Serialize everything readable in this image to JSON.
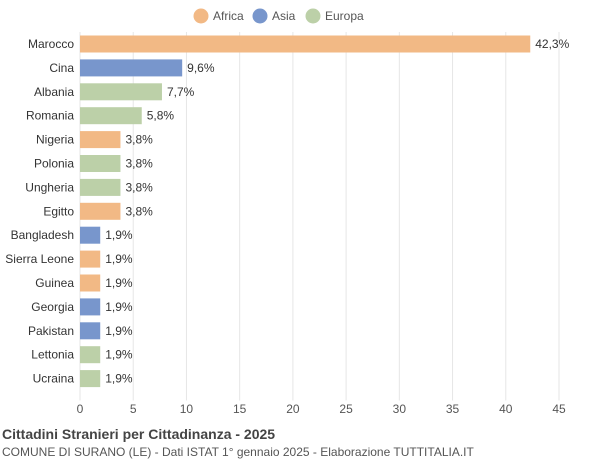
{
  "footer": {
    "title": "Cittadini Stranieri per Cittadinanza - 2025",
    "subtitle": "COMUNE DI SURANO (LE) - Dati ISTAT 1° gennaio 2025 - Elaborazione TUTTITALIA.IT"
  },
  "colors": {
    "Africa": "#f2b985",
    "Asia": "#7896cc",
    "Europa": "#bcd0a8"
  },
  "chart_data": {
    "type": "bar",
    "orientation": "horizontal",
    "legend": [
      "Africa",
      "Asia",
      "Europa"
    ],
    "legend_position": "top-center",
    "categories": [
      "Marocco",
      "Cina",
      "Albania",
      "Romania",
      "Nigeria",
      "Polonia",
      "Ungheria",
      "Egitto",
      "Bangladesh",
      "Sierra Leone",
      "Guinea",
      "Georgia",
      "Pakistan",
      "Lettonia",
      "Ucraina"
    ],
    "values": [
      42.3,
      9.6,
      7.7,
      5.8,
      3.8,
      3.8,
      3.8,
      3.8,
      1.9,
      1.9,
      1.9,
      1.9,
      1.9,
      1.9,
      1.9
    ],
    "value_labels": [
      "42,3%",
      "9,6%",
      "7,7%",
      "5,8%",
      "3,8%",
      "3,8%",
      "3,8%",
      "3,8%",
      "1,9%",
      "1,9%",
      "1,9%",
      "1,9%",
      "1,9%",
      "1,9%",
      "1,9%"
    ],
    "groups": [
      "Africa",
      "Asia",
      "Europa",
      "Europa",
      "Africa",
      "Europa",
      "Europa",
      "Africa",
      "Asia",
      "Africa",
      "Africa",
      "Asia",
      "Asia",
      "Europa",
      "Europa"
    ],
    "xlim": [
      0,
      45
    ],
    "xticks": [
      0,
      5,
      10,
      15,
      20,
      25,
      30,
      35,
      40,
      45
    ],
    "grid": true
  }
}
